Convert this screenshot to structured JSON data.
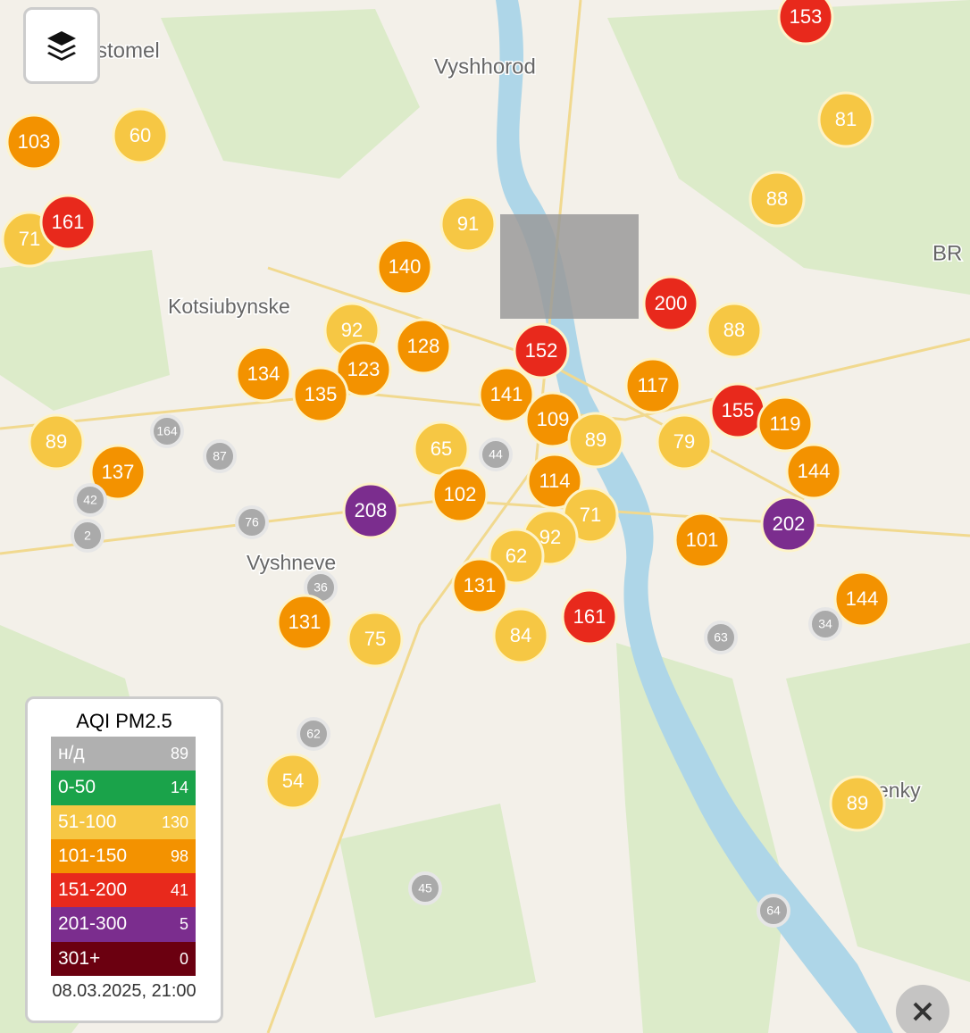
{
  "map": {
    "places": [
      "stomel",
      "Vyshhorod",
      "Kotsiubynske",
      "Vyshneve",
      "BR",
      "enky"
    ],
    "markers": [
      {
        "value": 153,
        "color": "#e8291c"
      },
      {
        "value": 103,
        "color": "#f39200"
      },
      {
        "value": 60,
        "color": "#f6c744"
      },
      {
        "value": 81,
        "color": "#f6c744"
      },
      {
        "value": 71,
        "color": "#f6c744"
      },
      {
        "value": 161,
        "color": "#e8291c"
      },
      {
        "value": 88,
        "color": "#f6c744"
      },
      {
        "value": 91,
        "color": "#f6c744"
      },
      {
        "value": 140,
        "color": "#f39200"
      },
      {
        "value": 200,
        "color": "#e8291c"
      },
      {
        "value": 92,
        "color": "#f6c744"
      },
      {
        "value": 128,
        "color": "#f39200"
      },
      {
        "value": 152,
        "color": "#e8291c"
      },
      {
        "value": 88,
        "color": "#f6c744"
      },
      {
        "value": 134,
        "color": "#f39200"
      },
      {
        "value": 123,
        "color": "#f39200"
      },
      {
        "value": 135,
        "color": "#f39200"
      },
      {
        "value": 141,
        "color": "#f39200"
      },
      {
        "value": 117,
        "color": "#f39200"
      },
      {
        "value": 155,
        "color": "#e8291c"
      },
      {
        "value": 109,
        "color": "#f39200"
      },
      {
        "value": 119,
        "color": "#f39200"
      },
      {
        "value": 89,
        "color": "#f6c744"
      },
      {
        "value": 164,
        "color": "#aaaaaa"
      },
      {
        "value": 87,
        "color": "#aaaaaa"
      },
      {
        "value": 89,
        "color": "#f6c744"
      },
      {
        "value": 79,
        "color": "#f6c744"
      },
      {
        "value": 65,
        "color": "#f6c744"
      },
      {
        "value": 44,
        "color": "#aaaaaa"
      },
      {
        "value": 137,
        "color": "#f39200"
      },
      {
        "value": 144,
        "color": "#f39200"
      },
      {
        "value": 114,
        "color": "#f39200"
      },
      {
        "value": 102,
        "color": "#f39200"
      },
      {
        "value": 208,
        "color": "#7b2d8e"
      },
      {
        "value": 202,
        "color": "#7b2d8e"
      },
      {
        "value": 42,
        "color": "#aaaaaa"
      },
      {
        "value": 76,
        "color": "#aaaaaa"
      },
      {
        "value": 2,
        "color": "#aaaaaa"
      },
      {
        "value": 71,
        "color": "#f6c744"
      },
      {
        "value": 92,
        "color": "#f6c744"
      },
      {
        "value": 101,
        "color": "#f39200"
      },
      {
        "value": 62,
        "color": "#f6c744"
      },
      {
        "value": 131,
        "color": "#f39200"
      },
      {
        "value": 36,
        "color": "#aaaaaa"
      },
      {
        "value": 161,
        "color": "#e8291c"
      },
      {
        "value": 144,
        "color": "#f39200"
      },
      {
        "value": 34,
        "color": "#aaaaaa"
      },
      {
        "value": 131,
        "color": "#f39200"
      },
      {
        "value": 75,
        "color": "#f6c744"
      },
      {
        "value": 84,
        "color": "#f6c744"
      },
      {
        "value": 63,
        "color": "#aaaaaa"
      },
      {
        "value": 62,
        "color": "#aaaaaa"
      },
      {
        "value": 54,
        "color": "#f6c744"
      },
      {
        "value": 89,
        "color": "#f6c744"
      },
      {
        "value": 45,
        "color": "#aaaaaa"
      },
      {
        "value": 64,
        "color": "#aaaaaa"
      }
    ],
    "legend": {
      "title": "AQI PM2.5",
      "rows": [
        {
          "range": "н/д",
          "count": 89,
          "color": "#b0b0b0"
        },
        {
          "range": "0-50",
          "count": 14,
          "color": "#1aa34a"
        },
        {
          "range": "51-100",
          "count": 130,
          "color": "#f6c744"
        },
        {
          "range": "101-150",
          "count": 98,
          "color": "#f39200"
        },
        {
          "range": "151-200",
          "count": 41,
          "color": "#e8291c"
        },
        {
          "range": "201-300",
          "count": 5,
          "color": "#7b2d8e"
        },
        {
          "range": "301+",
          "count": 0,
          "color": "#6b0010"
        }
      ],
      "timestamp": "08.03.2025, 21:00"
    }
  }
}
